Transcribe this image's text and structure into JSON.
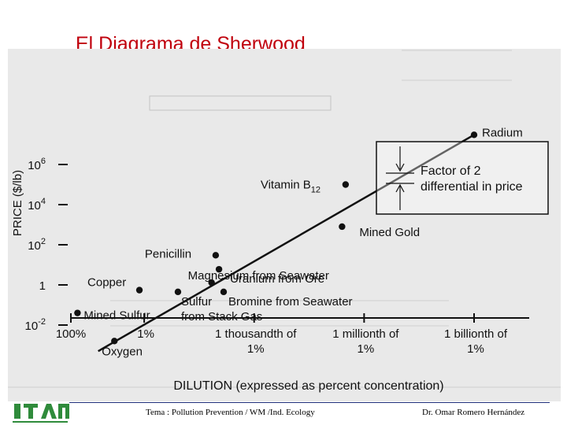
{
  "slide": {
    "title": "El Diagrama de Sherwood",
    "footer_left": "Tema : Pollution Prevention / WM /Ind. Ecology",
    "footer_right": "Dr. Omar Romero Hernández",
    "logo_text": "ITAM"
  },
  "chart_data": {
    "type": "scatter",
    "title": "",
    "xlabel": "DILUTION (expressed as percent concentration)",
    "ylabel": "PRICE ($/lb)",
    "x_scale": "log",
    "y_scale": "log",
    "x_ticks": [
      {
        "value": 100,
        "lines": [
          "100%"
        ]
      },
      {
        "value": 1,
        "lines": [
          "1%"
        ]
      },
      {
        "value": 0.001,
        "lines": [
          "1 thousandth of",
          "1%"
        ]
      },
      {
        "value": 1e-06,
        "lines": [
          "1 millionth of",
          "1%"
        ]
      },
      {
        "value": 1e-09,
        "lines": [
          "1 billionth of",
          "1%"
        ]
      }
    ],
    "y_ticks": [
      {
        "value": 0.01,
        "label": "10",
        "exp": "-2"
      },
      {
        "value": 1,
        "label": "1",
        "exp": ""
      },
      {
        "value": 100,
        "label": "10",
        "exp": "2"
      },
      {
        "value": 10000,
        "label": "10",
        "exp": "4"
      },
      {
        "value": 1000000,
        "label": "10",
        "exp": "6"
      }
    ],
    "points": [
      {
        "name": "Radium",
        "sub": "",
        "x": 1e-09,
        "y": 30000000
      },
      {
        "name": "Vitamin B",
        "sub": "12",
        "x": 3.2e-06,
        "y": 100000
      },
      {
        "name": "Mined Gold",
        "sub": "",
        "x": 4e-06,
        "y": 800
      },
      {
        "name": "Penicillin",
        "sub": "",
        "x": 0.0112,
        "y": 30
      },
      {
        "name": "Uranium from Ore",
        "sub": "",
        "x": 0.0091,
        "y": 6
      },
      {
        "name": "Magnesium from Seawater",
        "sub": "",
        "x": 0.0145,
        "y": 1.3
      },
      {
        "name": "Copper",
        "sub": "",
        "x": 1.35,
        "y": 0.55
      },
      {
        "name": "Bromine from Seawater",
        "sub": "",
        "x": 0.0068,
        "y": 0.45
      },
      {
        "name": "Sulfur from Stack Gas",
        "sub": "",
        "x": 0.12,
        "y": 0.45
      },
      {
        "name": "Mined Sulfur",
        "sub": "",
        "x": 66,
        "y": 0.04
      },
      {
        "name": "Oxygen",
        "sub": "",
        "x": 6.5,
        "y": 0.0016
      }
    ],
    "trend_line": {
      "from": {
        "x": 18,
        "y": 0.0005
      },
      "to": {
        "x": 1e-09,
        "y": 30000000
      }
    },
    "annotation": {
      "lines": [
        "Factor of 2",
        "differential in price"
      ]
    }
  }
}
